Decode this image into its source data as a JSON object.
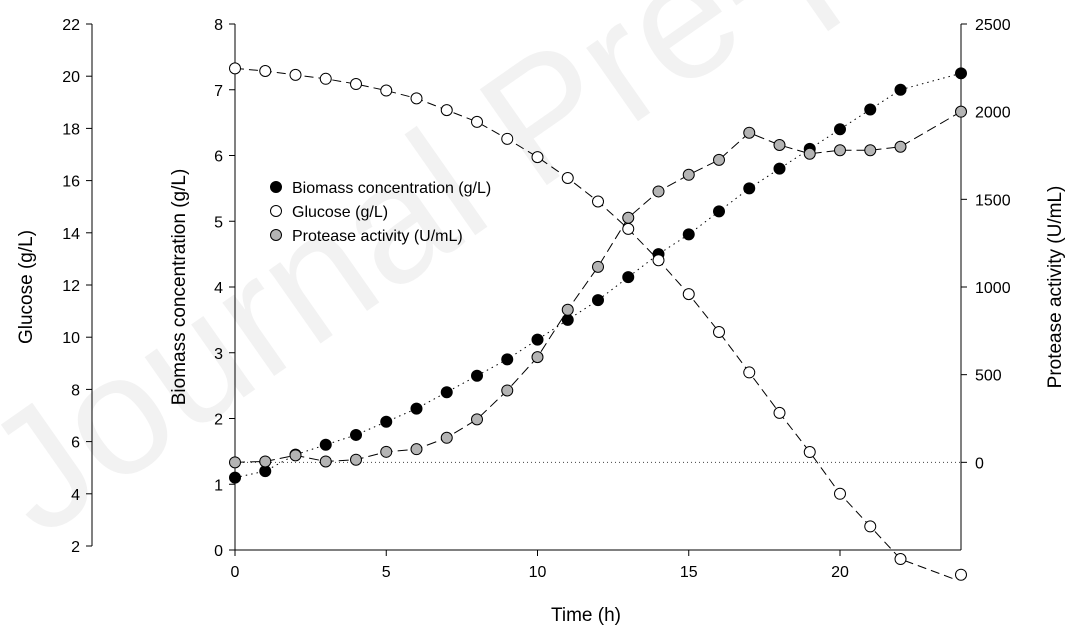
{
  "watermark": "Journal Pre-proof",
  "chart_data": {
    "type": "scatter",
    "x_axis": {
      "label": "Time (h)",
      "range": [
        0,
        24
      ],
      "ticks": [
        0,
        5,
        10,
        15,
        20
      ]
    },
    "y_axes": {
      "glucose": {
        "label": "Glucose (g/L)",
        "range": [
          2,
          22
        ],
        "ticks": [
          2,
          4,
          6,
          8,
          10,
          12,
          14,
          16,
          18,
          20,
          22
        ],
        "position": "far-left"
      },
      "biomass": {
        "label": "Biomass concentration (g/L)",
        "range": [
          0,
          8
        ],
        "ticks": [
          0,
          1,
          2,
          3,
          4,
          5,
          6,
          7,
          8
        ],
        "position": "left"
      },
      "protease": {
        "label": "Protease activity (U/mL)",
        "range": [
          -500,
          2500
        ],
        "ticks": [
          0,
          500,
          1000,
          1500,
          2000,
          2500
        ],
        "position": "right"
      }
    },
    "legend": {
      "placement": "upper-left inside plot",
      "entries": [
        {
          "label": "Biomass concentration (g/L)",
          "marker": "filled-black-circle"
        },
        {
          "label": "Glucose (g/L)",
          "marker": "open-circle"
        },
        {
          "label": "Protease activity (U/mL)",
          "marker": "grey-circle"
        }
      ]
    },
    "series": [
      {
        "name": "Biomass concentration (g/L)",
        "axis": "biomass",
        "line_style": "dotted",
        "marker_fill": "#000000",
        "x": [
          0,
          1,
          2,
          3,
          4,
          5,
          6,
          7,
          8,
          9,
          10,
          11,
          12,
          13,
          14,
          15,
          16,
          17,
          18,
          19,
          20,
          21,
          22,
          24
        ],
        "y": [
          1.1,
          1.2,
          1.45,
          1.6,
          1.75,
          1.95,
          2.15,
          2.4,
          2.65,
          2.9,
          3.2,
          3.5,
          3.8,
          4.15,
          4.5,
          4.8,
          5.15,
          5.5,
          5.8,
          6.1,
          6.4,
          6.7,
          7.0,
          7.25
        ]
      },
      {
        "name": "Glucose (g/L)",
        "axis": "glucose",
        "line_style": "long-dash",
        "marker_fill": "#ffffff",
        "x": [
          0,
          1,
          2,
          3,
          4,
          5,
          6,
          7,
          8,
          9,
          10,
          11,
          12,
          13,
          14,
          15,
          16,
          17,
          18,
          19,
          20,
          21,
          22,
          24
        ],
        "y": [
          20.3,
          20.2,
          20.05,
          19.9,
          19.7,
          19.45,
          19.15,
          18.7,
          18.25,
          17.6,
          16.9,
          16.1,
          15.2,
          14.15,
          12.95,
          11.65,
          10.2,
          8.65,
          7.1,
          5.6,
          4.0,
          2.75,
          1.5,
          0.9
        ],
        "line_extends_to": [
          24,
          0.75
        ]
      },
      {
        "name": "Protease activity (U/mL)",
        "axis": "protease",
        "line_style": "long-dash-dot",
        "marker_fill": "#b4b4b4",
        "x": [
          0,
          1,
          2,
          3,
          4,
          5,
          6,
          7,
          8,
          9,
          10,
          11,
          12,
          13,
          14,
          15,
          16,
          17,
          18,
          19,
          20,
          21,
          22,
          24
        ],
        "y": [
          0,
          5,
          40,
          5,
          15,
          60,
          75,
          140,
          245,
          410,
          600,
          870,
          1115,
          1395,
          1545,
          1640,
          1725,
          1880,
          1810,
          1760,
          1780,
          1780,
          1800,
          2000
        ]
      }
    ],
    "reference_line": {
      "axis": "protease",
      "y": 0,
      "style": "dotted"
    }
  }
}
